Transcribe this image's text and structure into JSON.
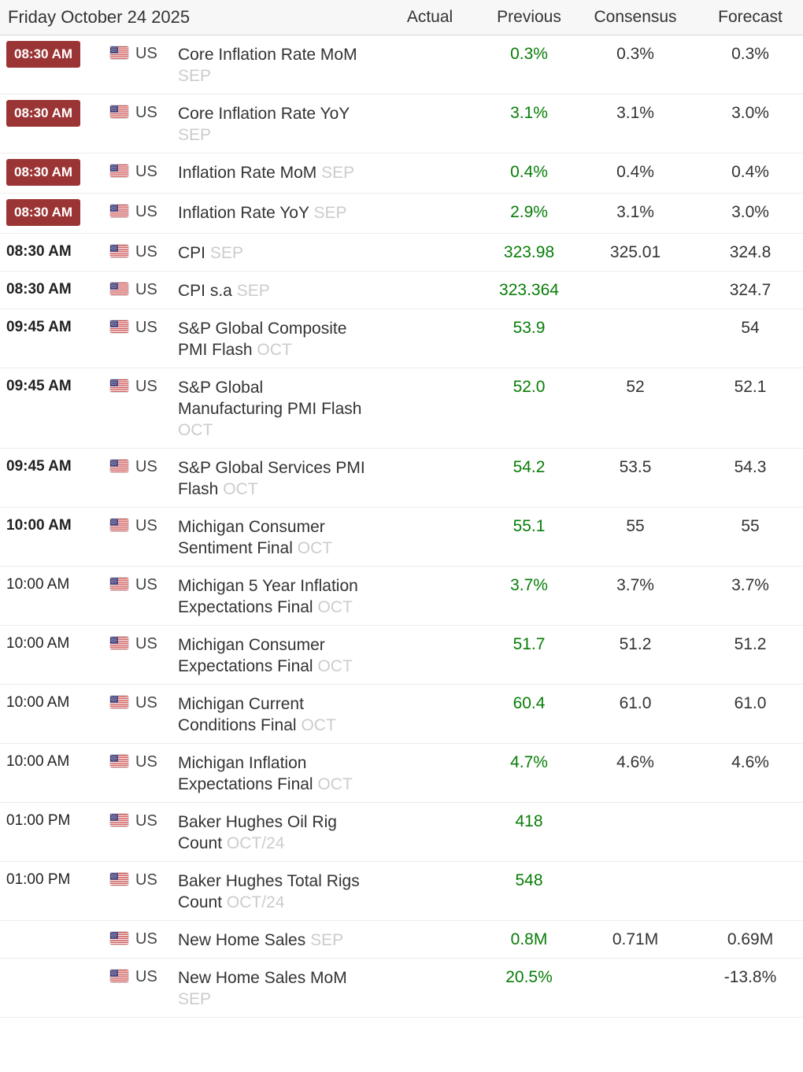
{
  "header": {
    "date_label": "Friday October 24 2025",
    "columns": [
      "Actual",
      "Previous",
      "Consensus",
      "Forecast"
    ]
  },
  "colors": {
    "badge_red": "#9b3434",
    "previous_green": "#077d07",
    "text_dark": "#333333",
    "period_gray": "#cccccc",
    "header_bg": "#f7f7f7"
  },
  "rows": [
    {
      "time": "08:30 AM",
      "time_style": "badge",
      "country": "US",
      "event": "Core Inflation Rate MoM",
      "period": "SEP",
      "actual": "",
      "previous": "0.3%",
      "consensus": "0.3%",
      "forecast": "0.3%"
    },
    {
      "time": "08:30 AM",
      "time_style": "badge",
      "country": "US",
      "event": "Core Inflation Rate YoY",
      "period": "SEP",
      "actual": "",
      "previous": "3.1%",
      "consensus": "3.1%",
      "forecast": "3.0%"
    },
    {
      "time": "08:30 AM",
      "time_style": "badge",
      "country": "US",
      "event": "Inflation Rate MoM",
      "period": "SEP",
      "actual": "",
      "previous": "0.4%",
      "consensus": "0.4%",
      "forecast": "0.4%"
    },
    {
      "time": "08:30 AM",
      "time_style": "badge",
      "country": "US",
      "event": "Inflation Rate YoY",
      "period": "SEP",
      "actual": "",
      "previous": "2.9%",
      "consensus": "3.1%",
      "forecast": "3.0%"
    },
    {
      "time": "08:30 AM",
      "time_style": "bold",
      "country": "US",
      "event": "CPI",
      "period": "SEP",
      "actual": "",
      "previous": "323.98",
      "consensus": "325.01",
      "forecast": "324.8"
    },
    {
      "time": "08:30 AM",
      "time_style": "bold",
      "country": "US",
      "event": "CPI s.a",
      "period": "SEP",
      "actual": "",
      "previous": "323.364",
      "consensus": "",
      "forecast": "324.7"
    },
    {
      "time": "09:45 AM",
      "time_style": "bold",
      "country": "US",
      "event": "S&P Global Composite PMI Flash",
      "period": "OCT",
      "actual": "",
      "previous": "53.9",
      "consensus": "",
      "forecast": "54"
    },
    {
      "time": "09:45 AM",
      "time_style": "bold",
      "country": "US",
      "event": "S&P Global Manufacturing PMI Flash",
      "period": "OCT",
      "actual": "",
      "previous": "52.0",
      "consensus": "52",
      "forecast": "52.1"
    },
    {
      "time": "09:45 AM",
      "time_style": "bold",
      "country": "US",
      "event": "S&P Global Services PMI Flash",
      "period": "OCT",
      "actual": "",
      "previous": "54.2",
      "consensus": "53.5",
      "forecast": "54.3"
    },
    {
      "time": "10:00 AM",
      "time_style": "bold",
      "country": "US",
      "event": "Michigan Consumer Sentiment Final",
      "period": "OCT",
      "actual": "",
      "previous": "55.1",
      "consensus": "55",
      "forecast": "55"
    },
    {
      "time": "10:00 AM",
      "time_style": "normal",
      "country": "US",
      "event": "Michigan 5 Year Inflation Expectations Final",
      "period": "OCT",
      "actual": "",
      "previous": "3.7%",
      "consensus": "3.7%",
      "forecast": "3.7%"
    },
    {
      "time": "10:00 AM",
      "time_style": "normal",
      "country": "US",
      "event": "Michigan Consumer Expectations Final",
      "period": "OCT",
      "actual": "",
      "previous": "51.7",
      "consensus": "51.2",
      "forecast": "51.2"
    },
    {
      "time": "10:00 AM",
      "time_style": "normal",
      "country": "US",
      "event": "Michigan Current Conditions Final",
      "period": "OCT",
      "actual": "",
      "previous": "60.4",
      "consensus": "61.0",
      "forecast": "61.0"
    },
    {
      "time": "10:00 AM",
      "time_style": "normal",
      "country": "US",
      "event": "Michigan Inflation Expectations Final",
      "period": "OCT",
      "actual": "",
      "previous": "4.7%",
      "consensus": "4.6%",
      "forecast": "4.6%"
    },
    {
      "time": "01:00 PM",
      "time_style": "normal",
      "country": "US",
      "event": "Baker Hughes Oil Rig Count",
      "period": "OCT/24",
      "actual": "",
      "previous": "418",
      "consensus": "",
      "forecast": ""
    },
    {
      "time": "01:00 PM",
      "time_style": "normal",
      "country": "US",
      "event": "Baker Hughes Total Rigs Count",
      "period": "OCT/24",
      "actual": "",
      "previous": "548",
      "consensus": "",
      "forecast": ""
    },
    {
      "time": "",
      "time_style": "none",
      "country": "US",
      "event": "New Home Sales",
      "period": "SEP",
      "actual": "",
      "previous": "0.8M",
      "consensus": "0.71M",
      "forecast": "0.69M"
    },
    {
      "time": "",
      "time_style": "none",
      "country": "US",
      "event": "New Home Sales MoM",
      "period": "SEP",
      "actual": "",
      "previous": "20.5%",
      "consensus": "",
      "forecast": "-13.8%"
    }
  ]
}
